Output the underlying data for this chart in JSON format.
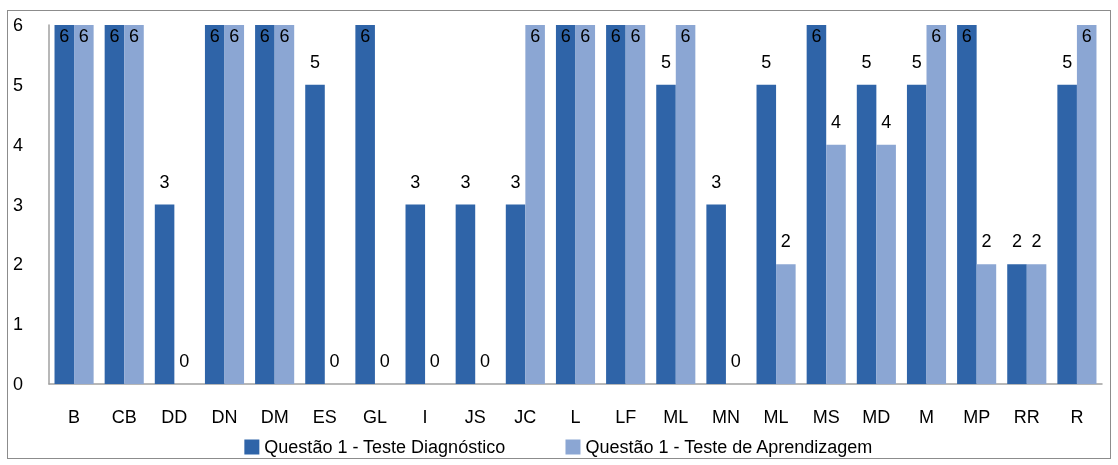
{
  "chart_data": {
    "type": "bar",
    "categories": [
      "B",
      "CB",
      "DD",
      "DN",
      "DM",
      "ES",
      "GL",
      "I",
      "JS",
      "JC",
      "L",
      "LF",
      "ML",
      "MN",
      "ML",
      "MS",
      "MD",
      "M",
      "MP",
      "RR",
      "R"
    ],
    "series": [
      {
        "name": "Questão 1 - Teste Diagnóstico",
        "color": "#2f64a8",
        "values": [
          6,
          6,
          3,
          6,
          6,
          5,
          6,
          3,
          3,
          3,
          6,
          6,
          5,
          3,
          5,
          6,
          5,
          5,
          6,
          2,
          5
        ]
      },
      {
        "name": "Questão 1 - Teste de Aprendizagem",
        "color": "#8ba6d3",
        "values": [
          6,
          6,
          0,
          6,
          6,
          0,
          0,
          0,
          0,
          6,
          6,
          6,
          6,
          0,
          2,
          4,
          4,
          6,
          2,
          2,
          6
        ]
      }
    ],
    "ylim": [
      0,
      6
    ],
    "yticks": [
      0,
      1,
      2,
      3,
      4,
      5,
      6
    ],
    "grid": false,
    "legend": "bottom",
    "data_labels": true
  }
}
